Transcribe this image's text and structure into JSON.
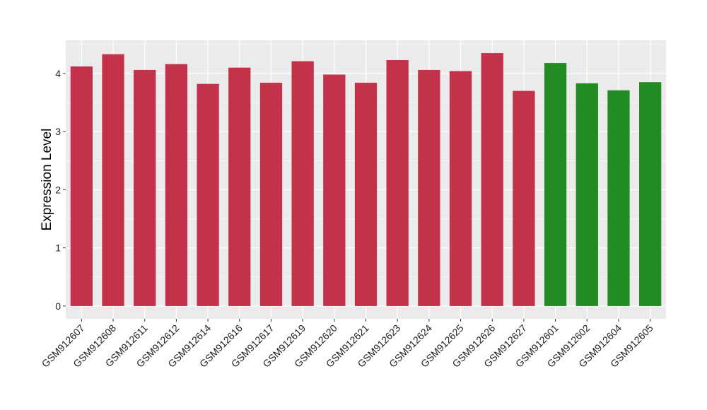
{
  "chart_data": {
    "type": "bar",
    "title": "",
    "xlabel": "",
    "ylabel": "Expression Level",
    "ylim": [
      -0.22,
      4.57
    ],
    "yticks": [
      0,
      1,
      2,
      3,
      4
    ],
    "grid": true,
    "categories": [
      "GSM912607",
      "GSM912608",
      "GSM912611",
      "GSM912612",
      "GSM912614",
      "GSM912616",
      "GSM912617",
      "GSM912619",
      "GSM912620",
      "GSM912621",
      "GSM912623",
      "GSM912624",
      "GSM912625",
      "GSM912626",
      "GSM912627",
      "GSM912601",
      "GSM912602",
      "GSM912604",
      "GSM912605"
    ],
    "values": [
      4.12,
      4.33,
      4.06,
      4.16,
      3.82,
      4.1,
      3.84,
      4.21,
      3.98,
      3.84,
      4.23,
      4.06,
      4.04,
      4.35,
      3.7,
      4.18,
      3.83,
      3.71,
      3.85
    ],
    "groups": [
      "a",
      "a",
      "a",
      "a",
      "a",
      "a",
      "a",
      "a",
      "a",
      "a",
      "a",
      "a",
      "a",
      "a",
      "a",
      "b",
      "b",
      "b",
      "b"
    ],
    "colors": {
      "a": "#C3314A",
      "b": "#228B22"
    },
    "panel_background": "#EBEBEB"
  }
}
